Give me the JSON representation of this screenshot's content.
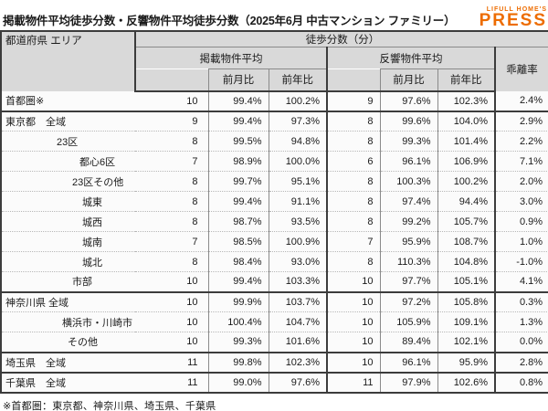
{
  "header": {
    "title": "掲載物件平均徒歩分数・反響物件平均徒歩分数（2025年6月 中古マンション ファミリー）",
    "logo": {
      "top_text": "LIFULL HOME'S",
      "main_text": "PRESS",
      "color": "#ed6c00"
    }
  },
  "chart_data": {
    "type": "table",
    "title": "掲載物件平均徒歩分数・反響物件平均徒歩分数（2025年6月 中古マンション ファミリー）",
    "header_labels": {
      "area": "都道府県 エリア",
      "walk_minutes_group": "徒歩分数（分）",
      "listed_group": "掲載物件平均",
      "response_group": "反響物件平均",
      "divergence": "乖離率",
      "mom": "前月比",
      "yoy": "前年比"
    },
    "rows": [
      {
        "area": "首都圏※",
        "indent": 4,
        "listed": "10",
        "listed_mom": "99.4%",
        "listed_yoy": "100.2%",
        "response": "9",
        "response_mom": "97.6%",
        "response_yoy": "102.3%",
        "divergence": "2.4%",
        "section_end": true
      },
      {
        "area": "東京都　全域",
        "indent": 4,
        "listed": "9",
        "listed_mom": "99.4%",
        "listed_yoy": "97.3%",
        "response": "8",
        "response_mom": "99.6%",
        "response_yoy": "104.0%",
        "divergence": "2.9%",
        "section_end": false
      },
      {
        "area": "23区",
        "indent": 60,
        "listed": "8",
        "listed_mom": "99.5%",
        "listed_yoy": "94.8%",
        "response": "8",
        "response_mom": "99.3%",
        "response_yoy": "101.4%",
        "divergence": "2.2%",
        "section_end": false
      },
      {
        "area": "都心6区",
        "indent": 85,
        "listed": "7",
        "listed_mom": "98.9%",
        "listed_yoy": "100.0%",
        "response": "6",
        "response_mom": "96.1%",
        "response_yoy": "106.9%",
        "divergence": "7.1%",
        "section_end": false
      },
      {
        "area": "23区その他",
        "indent": 77,
        "listed": "8",
        "listed_mom": "99.7%",
        "listed_yoy": "95.1%",
        "response": "8",
        "response_mom": "100.3%",
        "response_yoy": "100.2%",
        "divergence": "2.0%",
        "section_end": false
      },
      {
        "area": "城東",
        "indent": 88,
        "listed": "8",
        "listed_mom": "99.4%",
        "listed_yoy": "91.1%",
        "response": "8",
        "response_mom": "97.4%",
        "response_yoy": "94.4%",
        "divergence": "3.0%",
        "section_end": false
      },
      {
        "area": "城西",
        "indent": 88,
        "listed": "8",
        "listed_mom": "98.7%",
        "listed_yoy": "93.5%",
        "response": "8",
        "response_mom": "99.2%",
        "response_yoy": "105.7%",
        "divergence": "0.9%",
        "section_end": false
      },
      {
        "area": "城南",
        "indent": 88,
        "listed": "7",
        "listed_mom": "98.5%",
        "listed_yoy": "100.9%",
        "response": "7",
        "response_mom": "95.9%",
        "response_yoy": "108.7%",
        "divergence": "1.0%",
        "section_end": false
      },
      {
        "area": "城北",
        "indent": 88,
        "listed": "8",
        "listed_mom": "98.4%",
        "listed_yoy": "93.0%",
        "response": "8",
        "response_mom": "110.3%",
        "response_yoy": "104.8%",
        "divergence": "-1.0%",
        "section_end": false
      },
      {
        "area": "市部",
        "indent": 77,
        "listed": "10",
        "listed_mom": "99.4%",
        "listed_yoy": "103.3%",
        "response": "10",
        "response_mom": "97.7%",
        "response_yoy": "105.1%",
        "divergence": "4.1%",
        "section_end": true
      },
      {
        "area": "神奈川県 全域",
        "indent": 4,
        "listed": "10",
        "listed_mom": "99.9%",
        "listed_yoy": "103.7%",
        "response": "10",
        "response_mom": "97.2%",
        "response_yoy": "105.8%",
        "divergence": "0.3%",
        "section_end": false
      },
      {
        "area": "横浜市・川崎市",
        "indent": 66,
        "listed": "10",
        "listed_mom": "100.4%",
        "listed_yoy": "104.7%",
        "response": "10",
        "response_mom": "105.9%",
        "response_yoy": "109.1%",
        "divergence": "1.3%",
        "section_end": false
      },
      {
        "area": "その他",
        "indent": 72,
        "listed": "10",
        "listed_mom": "99.3%",
        "listed_yoy": "101.6%",
        "response": "10",
        "response_mom": "89.4%",
        "response_yoy": "102.1%",
        "divergence": "0.0%",
        "section_end": true
      },
      {
        "area": "埼玉県　全域",
        "indent": 4,
        "listed": "11",
        "listed_mom": "99.8%",
        "listed_yoy": "102.3%",
        "response": "10",
        "response_mom": "96.1%",
        "response_yoy": "95.9%",
        "divergence": "2.8%",
        "section_end": true
      },
      {
        "area": "千葉県　全域",
        "indent": 4,
        "listed": "11",
        "listed_mom": "99.0%",
        "listed_yoy": "97.6%",
        "response": "11",
        "response_mom": "97.9%",
        "response_yoy": "102.6%",
        "divergence": "0.8%",
        "section_end": false
      }
    ]
  },
  "footnote": "※首都圏：東京都、神奈川県、埼玉県、千葉県"
}
